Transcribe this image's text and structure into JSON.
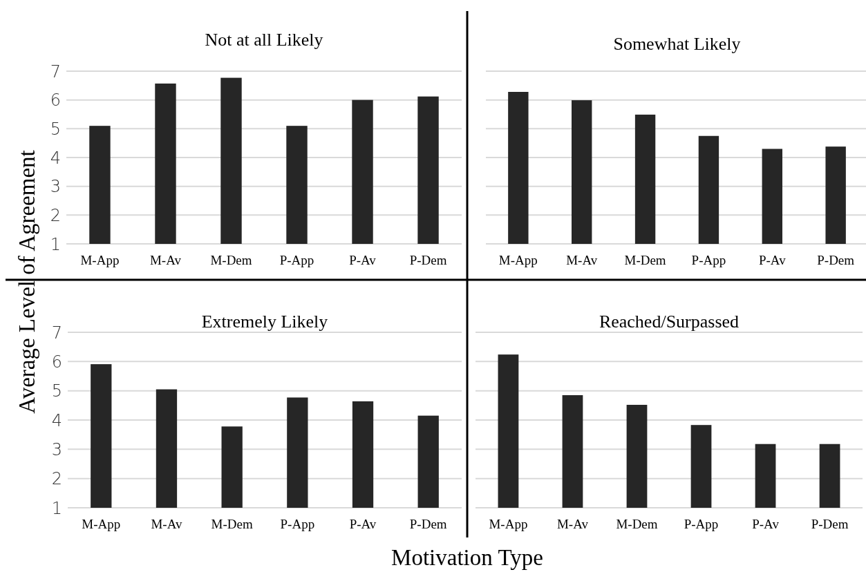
{
  "chart_data": [
    {
      "type": "bar",
      "title": "Not at all Likely",
      "ylabel": "Average Level of Agreement",
      "categories": [
        "M-App",
        "M-Av",
        "M-Dem",
        "P-App",
        "P-Av",
        "P-Dem"
      ],
      "values": [
        5.1,
        6.57,
        6.77,
        5.1,
        6.0,
        6.12
      ],
      "color": "#262626",
      "ylim": [
        1,
        7
      ],
      "yticks": [
        1,
        2,
        3,
        4,
        5,
        6,
        7
      ],
      "grid": "y"
    },
    {
      "type": "bar",
      "title": "Somewhat Likely",
      "categories": [
        "M-App",
        "M-Av",
        "M-Dem",
        "P-App",
        "P-Av",
        "P-Dem"
      ],
      "values": [
        6.28,
        5.99,
        5.49,
        4.75,
        4.3,
        4.38
      ],
      "color": "#262626",
      "ylim": [
        1,
        7
      ],
      "yticks": [
        1,
        2,
        3,
        4,
        5,
        6,
        7
      ],
      "grid": "y",
      "tick_labels": "x"
    },
    {
      "type": "bar",
      "title": "Extremely Likely",
      "xlabel": "Motivation Type",
      "categories": [
        "M-App",
        "M-Av",
        "M-Dem",
        "P-App",
        "P-Av",
        "P-Dem"
      ],
      "values": [
        5.91,
        5.05,
        3.78,
        4.77,
        4.64,
        4.15
      ],
      "color": "#262626",
      "ylim": [
        1,
        7
      ],
      "yticks": [
        1,
        2,
        3,
        4,
        5,
        6,
        7
      ],
      "grid": "y"
    },
    {
      "type": "bar",
      "title": "Reached/Surpassed",
      "categories": [
        "M-App",
        "M-Av",
        "M-Dem",
        "P-App",
        "P-Av",
        "P-Dem"
      ],
      "values": [
        6.24,
        4.85,
        4.52,
        3.83,
        3.18,
        3.18
      ],
      "color": "#262626",
      "ylim": [
        1,
        7
      ],
      "yticks": [
        1,
        2,
        3,
        4,
        5,
        6,
        7
      ],
      "grid": "y",
      "tick_labels": "x"
    }
  ]
}
